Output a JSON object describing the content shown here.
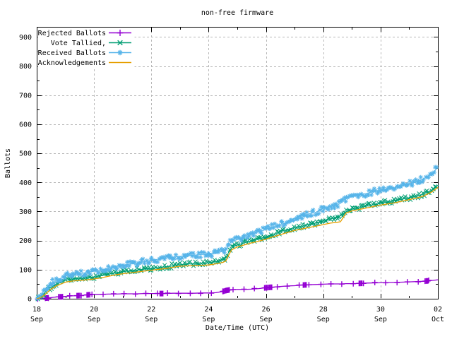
{
  "chart": {
    "title": "non-free firmware",
    "xlabel": "Date/Time (UTC)",
    "ylabel": "Ballots"
  },
  "chart_data": {
    "type": "line",
    "title": "non-free firmware",
    "xlabel": "Date/Time (UTC)",
    "ylabel": "Ballots",
    "x_unit": "days since 18 Sep 00:00 UTC",
    "xlim": [
      0,
      14
    ],
    "ylim": [
      0,
      935
    ],
    "grid": true,
    "legend_position": "top-left",
    "x_ticks": [
      {
        "day": 0,
        "top": "18",
        "bottom": "Sep"
      },
      {
        "day": 2,
        "top": "20",
        "bottom": "Sep"
      },
      {
        "day": 4,
        "top": "22",
        "bottom": "Sep"
      },
      {
        "day": 6,
        "top": "24",
        "bottom": "Sep"
      },
      {
        "day": 8,
        "top": "26",
        "bottom": "Sep"
      },
      {
        "day": 10,
        "top": "28",
        "bottom": "Sep"
      },
      {
        "day": 12,
        "top": "30",
        "bottom": "Sep"
      },
      {
        "day": 14,
        "top": "02",
        "bottom": "Oct"
      }
    ],
    "x_minor_days": [
      1,
      3,
      5,
      7,
      9,
      11,
      13
    ],
    "x_grid_days": [
      2,
      4,
      6,
      8,
      10,
      12
    ],
    "y_ticks": [
      0,
      100,
      200,
      300,
      400,
      500,
      600,
      700,
      800,
      900
    ],
    "y_minor_ticks": [
      50,
      150,
      250,
      350,
      450,
      550,
      650,
      750,
      850
    ],
    "x": [
      0,
      0.1,
      0.2,
      0.3,
      0.4,
      0.5,
      0.7,
      0.9,
      1.0,
      1.25,
      1.5,
      1.75,
      2.0,
      2.25,
      2.5,
      2.75,
      3.0,
      3.25,
      3.5,
      3.75,
      4.0,
      4.25,
      4.5,
      4.75,
      5.0,
      5.25,
      5.5,
      5.75,
      6.0,
      6.25,
      6.5,
      6.6,
      6.7,
      6.8,
      7.0,
      7.25,
      7.5,
      7.75,
      8.0,
      8.25,
      8.5,
      8.75,
      9.0,
      9.25,
      9.5,
      9.75,
      10.0,
      10.25,
      10.5,
      10.6,
      10.8,
      11.0,
      11.3,
      11.5,
      12.0,
      12.5,
      13.0,
      13.25,
      13.5,
      13.6,
      13.8,
      14.0
    ],
    "series": [
      {
        "name": "Rejected Ballots",
        "color": "#9400d3",
        "marker": "plus",
        "marker_size": 4,
        "marker_step_days": 0.38,
        "jitter": 0.6,
        "line_width": 1.3,
        "cluster_days": [
          0.3,
          0.8,
          1.4,
          1.75,
          4.3,
          6.5,
          6.62,
          7.95,
          8.1,
          9.3,
          11.25,
          13.55
        ],
        "values": [
          0,
          0,
          1,
          2,
          3,
          4,
          6,
          7,
          8,
          10,
          11,
          13,
          15,
          15,
          16,
          16,
          17,
          17,
          17,
          18,
          18,
          18,
          18,
          19,
          19,
          19,
          19,
          20,
          20,
          21,
          25,
          28,
          30,
          31,
          32,
          32,
          33,
          35,
          38,
          40,
          42,
          44,
          45,
          47,
          48,
          49,
          50,
          51,
          51,
          51,
          52,
          52,
          53,
          54,
          55,
          56,
          58,
          59,
          60,
          61,
          63,
          65
        ]
      },
      {
        "name": "Vote Tallied,",
        "color": "#009e73",
        "marker": "cross",
        "marker_size": 2.8,
        "marker_step_days": 0.05,
        "jitter": 3.2,
        "line_width": 1,
        "cluster_days": [],
        "values": [
          0,
          5,
          12,
          22,
          32,
          40,
          52,
          60,
          64,
          68,
          70,
          72,
          75,
          79,
          84,
          89,
          93,
          96,
          99,
          102,
          104,
          107,
          110,
          114,
          117,
          119,
          121,
          122,
          124,
          128,
          133,
          140,
          160,
          175,
          185,
          192,
          200,
          207,
          213,
          222,
          230,
          238,
          244,
          250,
          255,
          260,
          268,
          275,
          280,
          285,
          300,
          308,
          314,
          318,
          328,
          338,
          347,
          352,
          360,
          365,
          375,
          390
        ]
      },
      {
        "name": "Received Ballots",
        "color": "#56b4e9",
        "marker": "star",
        "marker_size": 3.2,
        "marker_step_days": 0.05,
        "jitter": 4,
        "line_width": 1,
        "cluster_days": [],
        "values": [
          2,
          8,
          20,
          32,
          45,
          54,
          65,
          73,
          78,
          83,
          86,
          90,
          95,
          99,
          104,
          110,
          115,
          119,
          123,
          128,
          132,
          136,
          140,
          143,
          146,
          148,
          150,
          152,
          153,
          157,
          163,
          168,
          185,
          197,
          203,
          210,
          222,
          230,
          238,
          247,
          255,
          262,
          268,
          280,
          292,
          298,
          310,
          318,
          322,
          328,
          345,
          352,
          358,
          362,
          375,
          382,
          395,
          402,
          412,
          418,
          430,
          452
        ]
      },
      {
        "name": "Acknowledgements",
        "color": "#e69f00",
        "marker": "none",
        "marker_size": 0,
        "marker_step_days": 0,
        "jitter": 0,
        "line_width": 1.3,
        "cluster_days": [],
        "values": [
          0,
          3,
          8,
          15,
          25,
          33,
          45,
          53,
          57,
          61,
          63,
          65,
          68,
          72,
          77,
          82,
          86,
          89,
          92,
          95,
          98,
          101,
          104,
          108,
          112,
          113,
          114,
          115,
          116,
          120,
          125,
          130,
          150,
          168,
          178,
          185,
          192,
          198,
          205,
          213,
          220,
          228,
          235,
          240,
          245,
          250,
          255,
          260,
          263,
          265,
          295,
          302,
          308,
          312,
          322,
          330,
          341,
          346,
          353,
          358,
          368,
          383
        ]
      }
    ]
  }
}
